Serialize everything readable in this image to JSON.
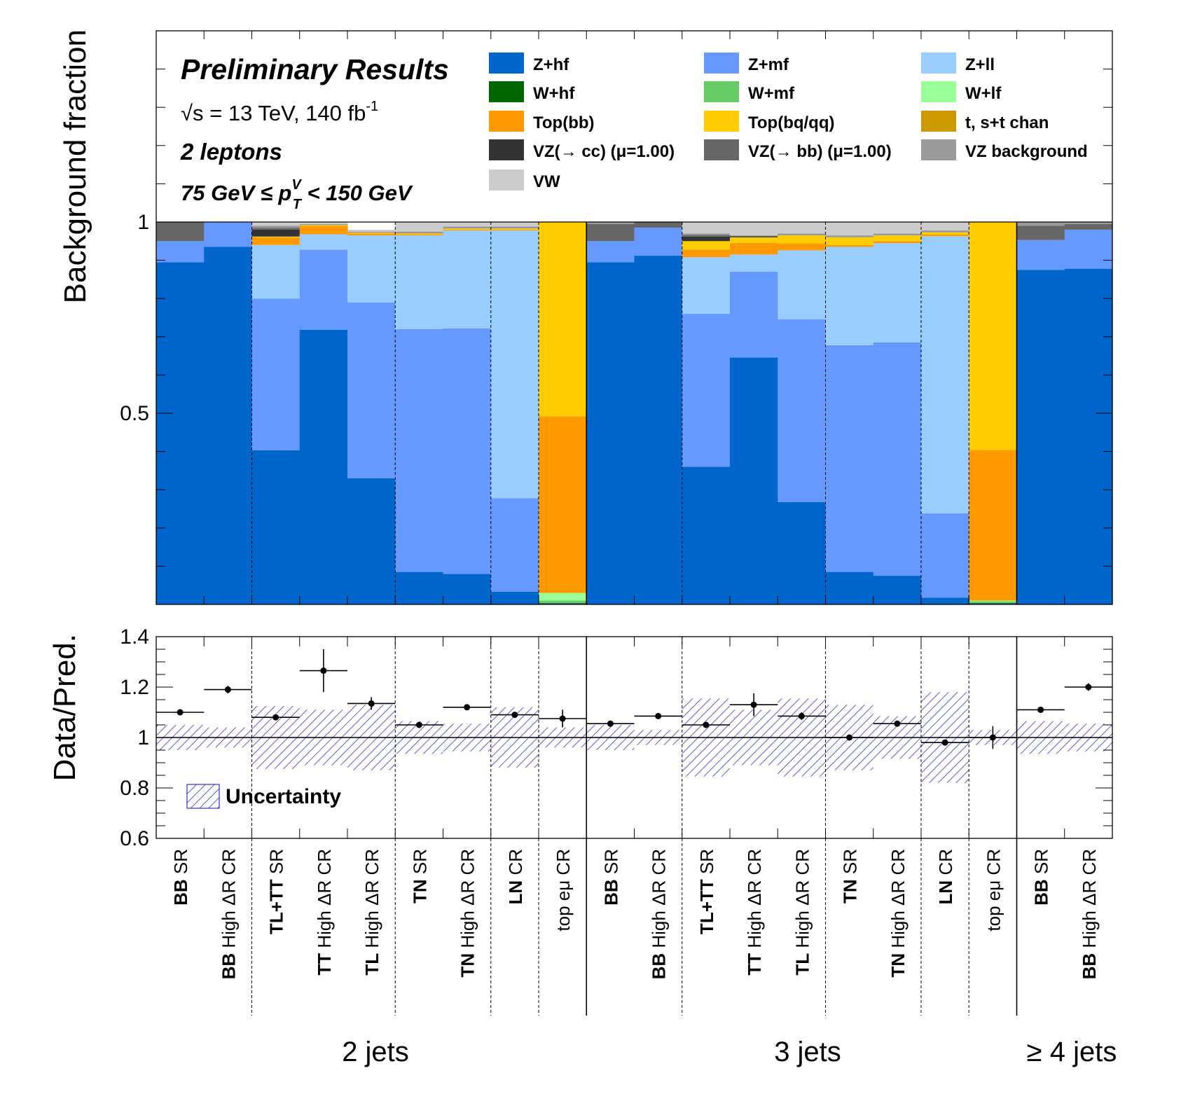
{
  "chart_data": [
    {
      "type": "stacked-bar",
      "ylabel": "Background fraction",
      "ylim": [
        0,
        1.5
      ],
      "yticks": [
        "0.5",
        "1"
      ],
      "info": {
        "title": "Preliminary Results",
        "energy_prefix": "√s = 13 TeV, 140 fb",
        "energy_sup": "-1",
        "channel": "2 leptons",
        "pt_left": "75 GeV  ≤ p",
        "pt_sup": "V",
        "pt_sub": "T",
        "pt_right": " < 150 GeV"
      },
      "components": [
        {
          "name": "Z+hf",
          "color": "#0066cc"
        },
        {
          "name": "Z+mf",
          "color": "#6699ff"
        },
        {
          "name": "Z+ll",
          "color": "#99ccff"
        },
        {
          "name": "W+hf",
          "color": "#006600"
        },
        {
          "name": "W+mf",
          "color": "#66cc66"
        },
        {
          "name": "W+lf",
          "color": "#99ff99"
        },
        {
          "name": "Top(bb)",
          "color": "#ff9900"
        },
        {
          "name": "Top(bq/qq)",
          "color": "#ffcc00"
        },
        {
          "name": "t, s+t chan",
          "color": "#cc9900"
        },
        {
          "name": "VZ(→ cc) (μ=1.00)",
          "color": "#333333"
        },
        {
          "name": "VZ(→ bb) (μ=1.00)",
          "color": "#666666"
        },
        {
          "name": "VZ background",
          "color": "#999999"
        },
        {
          "name": "VW",
          "color": "#cccccc"
        }
      ],
      "legend_order": [
        "Z+hf",
        "Z+mf",
        "Z+ll",
        "W+hf",
        "W+mf",
        "W+lf",
        "Top(bb)",
        "Top(bq/qq)",
        "t, s+t chan",
        "VZ(→ cc) (μ=1.00)",
        "VZ(→ bb) (μ=1.00)",
        "VZ background",
        "VW"
      ],
      "bins": [
        {
          "Z+hf": 0.895,
          "Z+mf": 0.055,
          "Z+ll": 0.0,
          "W+hf": 0.0,
          "W+mf": 0.0,
          "W+lf": 0.0,
          "Top(bb)": 0.0,
          "Top(bq/qq)": 0.0,
          "t, s+t chan": 0.0,
          "VZ(→ cc) (μ=1.00)": 0.0,
          "VZ(→ bb) (μ=1.00)": 0.05,
          "VZ background": 0.0,
          "VW": 0.0
        },
        {
          "Z+hf": 0.935,
          "Z+mf": 0.065,
          "Z+ll": 0.0,
          "W+hf": 0.0,
          "W+mf": 0.0,
          "W+lf": 0.0,
          "Top(bb)": 0.0,
          "Top(bq/qq)": 0.0,
          "t, s+t chan": 0.0,
          "VZ(→ cc) (μ=1.00)": 0.0,
          "VZ(→ bb) (μ=1.00)": 0.0,
          "VZ background": 0.0,
          "VW": 0.0
        },
        {
          "Z+hf": 0.403,
          "Z+mf": 0.397,
          "Z+ll": 0.14,
          "W+hf": 0.0,
          "W+mf": 0.0,
          "W+lf": 0.0,
          "Top(bb)": 0.02,
          "Top(bq/qq)": 0.002,
          "t, s+t chan": 0.0,
          "VZ(→ cc) (μ=1.00)": 0.018,
          "VZ(→ bb) (μ=1.00)": 0.005,
          "VZ background": 0.005,
          "VW": 0.01
        },
        {
          "Z+hf": 0.718,
          "Z+mf": 0.21,
          "Z+ll": 0.04,
          "W+hf": 0.0,
          "W+mf": 0.0,
          "W+lf": 0.0,
          "Top(bb)": 0.022,
          "Top(bq/qq)": 0.002,
          "t, s+t chan": 0.0,
          "VZ(→ cc) (μ=1.00)": 0.0,
          "VZ(→ bb) (μ=1.00)": 0.0,
          "VZ background": 0.003,
          "VW": 0.005
        },
        {
          "Z+hf": 0.33,
          "Z+mf": 0.46,
          "Z+ll": 0.175,
          "W+hf": 0.0,
          "W+mf": 0.0,
          "W+lf": 0.0,
          "Top(bb)": 0.005,
          "Top(bq/qq)": 0.002,
          "t, s+t chan": 0.0,
          "VZ(→ cc) (μ=1.00)": 0.0,
          "VZ(→ bb) (μ=1.00)": 0.0,
          "VZ background": 0.003,
          "VW": 0.005
        },
        {
          "Z+hf": 0.085,
          "Z+mf": 0.635,
          "Z+ll": 0.245,
          "W+hf": 0.0,
          "W+mf": 0.0,
          "W+lf": 0.0,
          "Top(bb)": 0.002,
          "Top(bq/qq)": 0.003,
          "t, s+t chan": 0.0,
          "VZ(→ cc) (μ=1.00)": 0.0,
          "VZ(→ bb) (μ=1.00)": 0.0,
          "VZ background": 0.005,
          "VW": 0.025
        },
        {
          "Z+hf": 0.08,
          "Z+mf": 0.642,
          "Z+ll": 0.256,
          "W+hf": 0.0,
          "W+mf": 0.0,
          "W+lf": 0.0,
          "Top(bb)": 0.002,
          "Top(bq/qq)": 0.003,
          "t, s+t chan": 0.0,
          "VZ(→ cc) (μ=1.00)": 0.0,
          "VZ(→ bb) (μ=1.00)": 0.0,
          "VZ background": 0.005,
          "VW": 0.012
        },
        {
          "Z+hf": 0.033,
          "Z+mf": 0.245,
          "Z+ll": 0.7,
          "W+hf": 0.0,
          "W+mf": 0.0,
          "W+lf": 0.0,
          "Top(bb)": 0.002,
          "Top(bq/qq)": 0.003,
          "t, s+t chan": 0.0,
          "VZ(→ cc) (μ=1.00)": 0.0,
          "VZ(→ bb) (μ=1.00)": 0.0,
          "VZ background": 0.005,
          "VW": 0.012
        },
        {
          "Z+hf": 0.0,
          "Z+mf": 0.002,
          "Z+ll": 0.0,
          "W+hf": 0.002,
          "W+mf": 0.006,
          "W+lf": 0.02,
          "Top(bb)": 0.462,
          "Top(bq/qq)": 0.508,
          "t, s+t chan": 0.0,
          "VZ(→ cc) (μ=1.00)": 0.0,
          "VZ(→ bb) (μ=1.00)": 0.0,
          "VZ background": 0.0,
          "VW": 0.0
        },
        {
          "Z+hf": 0.895,
          "Z+mf": 0.055,
          "Z+ll": 0.0,
          "W+hf": 0.0,
          "W+mf": 0.0,
          "W+lf": 0.0,
          "Top(bb)": 0.0,
          "Top(bq/qq)": 0.0,
          "t, s+t chan": 0.0,
          "VZ(→ cc) (μ=1.00)": 0.0,
          "VZ(→ bb) (μ=1.00)": 0.045,
          "VZ background": 0.005,
          "VW": 0.0
        },
        {
          "Z+hf": 0.912,
          "Z+mf": 0.073,
          "Z+ll": 0.0,
          "W+hf": 0.0,
          "W+mf": 0.0,
          "W+lf": 0.0,
          "Top(bb)": 0.0,
          "Top(bq/qq)": 0.0,
          "t, s+t chan": 0.0,
          "VZ(→ cc) (μ=1.00)": 0.0,
          "VZ(→ bb) (μ=1.00)": 0.015,
          "VZ background": 0.0,
          "VW": 0.0
        },
        {
          "Z+hf": 0.36,
          "Z+mf": 0.4,
          "Z+ll": 0.148,
          "W+hf": 0.0,
          "W+mf": 0.0,
          "W+lf": 0.0,
          "Top(bb)": 0.02,
          "Top(bq/qq)": 0.022,
          "t, s+t chan": 0.0,
          "VZ(→ cc) (μ=1.00)": 0.012,
          "VZ(→ bb) (μ=1.00)": 0.004,
          "VZ background": 0.004,
          "VW": 0.03
        },
        {
          "Z+hf": 0.646,
          "Z+mf": 0.224,
          "Z+ll": 0.045,
          "W+hf": 0.0,
          "W+mf": 0.0,
          "W+lf": 0.0,
          "Top(bb)": 0.03,
          "Top(bq/qq)": 0.015,
          "t, s+t chan": 0.0,
          "VZ(→ cc) (μ=1.00)": 0.003,
          "VZ(→ bb) (μ=1.00)": 0.0,
          "VZ background": 0.002,
          "VW": 0.035
        },
        {
          "Z+hf": 0.268,
          "Z+mf": 0.478,
          "Z+ll": 0.18,
          "W+hf": 0.0,
          "W+mf": 0.0,
          "W+lf": 0.0,
          "Top(bb)": 0.018,
          "Top(bq/qq)": 0.021,
          "t, s+t chan": 0.0,
          "VZ(→ cc) (μ=1.00)": 0.0,
          "VZ(→ bb) (μ=1.00)": 0.0,
          "VZ background": 0.005,
          "VW": 0.03
        },
        {
          "Z+hf": 0.085,
          "Z+mf": 0.593,
          "Z+ll": 0.257,
          "W+hf": 0.0,
          "W+mf": 0.0,
          "W+lf": 0.0,
          "Top(bb)": 0.005,
          "Top(bq/qq)": 0.02,
          "t, s+t chan": 0.0,
          "VZ(→ cc) (μ=1.00)": 0.0,
          "VZ(→ bb) (μ=1.00)": 0.0,
          "VZ background": 0.005,
          "VW": 0.035
        },
        {
          "Z+hf": 0.075,
          "Z+mf": 0.61,
          "Z+ll": 0.26,
          "W+hf": 0.0,
          "W+mf": 0.0,
          "W+lf": 0.0,
          "Top(bb)": 0.005,
          "Top(bq/qq)": 0.015,
          "t, s+t chan": 0.0,
          "VZ(→ cc) (μ=1.00)": 0.0,
          "VZ(→ bb) (μ=1.00)": 0.0,
          "VZ background": 0.005,
          "VW": 0.03
        },
        {
          "Z+hf": 0.018,
          "Z+mf": 0.22,
          "Z+ll": 0.725,
          "W+hf": 0.0,
          "W+mf": 0.0,
          "W+lf": 0.0,
          "Top(bb)": 0.004,
          "Top(bq/qq)": 0.006,
          "t, s+t chan": 0.0,
          "VZ(→ cc) (μ=1.00)": 0.0,
          "VZ(→ bb) (μ=1.00)": 0.0,
          "VZ background": 0.005,
          "VW": 0.022
        },
        {
          "Z+hf": 0.0,
          "Z+mf": 0.002,
          "Z+ll": 0.0,
          "W+hf": 0.002,
          "W+mf": 0.004,
          "W+lf": 0.002,
          "Top(bb)": 0.394,
          "Top(bq/qq)": 0.596,
          "t, s+t chan": 0.0,
          "VZ(→ cc) (μ=1.00)": 0.0,
          "VZ(→ bb) (μ=1.00)": 0.0,
          "VZ background": 0.0,
          "VW": 0.0
        },
        {
          "Z+hf": 0.875,
          "Z+mf": 0.078,
          "Z+ll": 0.0,
          "W+hf": 0.0,
          "W+mf": 0.0,
          "W+lf": 0.0,
          "Top(bb)": 0.0,
          "Top(bq/qq)": 0.0,
          "t, s+t chan": 0.0,
          "VZ(→ cc) (μ=1.00)": 0.0,
          "VZ(→ bb) (μ=1.00)": 0.037,
          "VZ background": 0.01,
          "VW": 0.0
        },
        {
          "Z+hf": 0.878,
          "Z+mf": 0.102,
          "Z+ll": 0.0,
          "W+hf": 0.0,
          "W+mf": 0.0,
          "W+lf": 0.0,
          "Top(bb)": 0.0,
          "Top(bq/qq)": 0.0,
          "t, s+t chan": 0.0,
          "VZ(→ cc) (μ=1.00)": 0.0,
          "VZ(→ bb) (μ=1.00)": 0.015,
          "VZ background": 0.005,
          "VW": 0.0
        }
      ]
    },
    {
      "type": "ratio",
      "ylabel": "Data/Pred.",
      "ylim": [
        0.6,
        1.4
      ],
      "yticks": [
        "0.6",
        "0.8",
        "1",
        "1.2",
        "1.4"
      ],
      "legend": "Uncertainty",
      "uncertainty_color": "#3333cc",
      "ratio": [
        1.1,
        1.19,
        1.08,
        1.265,
        1.135,
        1.05,
        1.12,
        1.09,
        1.075,
        1.055,
        1.085,
        1.05,
        1.13,
        1.085,
        1.0,
        1.055,
        0.98,
        1.0,
        1.11,
        1.2
      ],
      "ratio_err": [
        0.005,
        0.015,
        0.008,
        0.085,
        0.025,
        0.007,
        0.005,
        0.008,
        0.035,
        0.006,
        0.01,
        0.008,
        0.045,
        0.015,
        0.006,
        0.007,
        0.006,
        0.045,
        0.007,
        0.015
      ],
      "unc_band": [
        0.05,
        0.04,
        0.125,
        0.11,
        0.13,
        0.065,
        0.055,
        0.12,
        0.04,
        0.05,
        0.03,
        0.155,
        0.11,
        0.155,
        0.13,
        0.085,
        0.18,
        0.03,
        0.065,
        0.055
      ]
    }
  ],
  "categories": [
    {
      "bold": "BB",
      "normal": " SR"
    },
    {
      "bold": "BB",
      "normal": " High ΔR CR"
    },
    {
      "bold": "TL+TT",
      "normal": " SR"
    },
    {
      "bold": "TT",
      "normal": " High ΔR CR"
    },
    {
      "bold": "TL",
      "normal": " High ΔR CR"
    },
    {
      "bold": "TN",
      "normal": " SR"
    },
    {
      "bold": "TN",
      "normal": " High ΔR CR"
    },
    {
      "bold": "LN",
      "normal": " CR"
    },
    {
      "bold": "",
      "normal": "top eμ CR"
    },
    {
      "bold": "BB",
      "normal": " SR"
    },
    {
      "bold": "BB",
      "normal": " High ΔR CR"
    },
    {
      "bold": "TL+TT",
      "normal": " SR"
    },
    {
      "bold": "TT",
      "normal": " High ΔR CR"
    },
    {
      "bold": "TL",
      "normal": " High ΔR CR"
    },
    {
      "bold": "TN",
      "normal": " SR"
    },
    {
      "bold": "TN",
      "normal": " High ΔR CR"
    },
    {
      "bold": "LN",
      "normal": " CR"
    },
    {
      "bold": "",
      "normal": "top eμ CR"
    },
    {
      "bold": "BB",
      "normal": " SR"
    },
    {
      "bold": "BB",
      "normal": " High ΔR CR"
    }
  ],
  "groups": [
    {
      "label": "2 jets",
      "start": 0,
      "end": 9
    },
    {
      "label": "3 jets",
      "start": 9,
      "end": 18
    },
    {
      "label": "≥ 4 jets",
      "start": 18,
      "end": 20
    }
  ],
  "dashed_after": [
    2,
    5,
    7,
    8,
    11,
    14,
    16,
    17
  ],
  "solid_after": [
    9,
    18
  ]
}
